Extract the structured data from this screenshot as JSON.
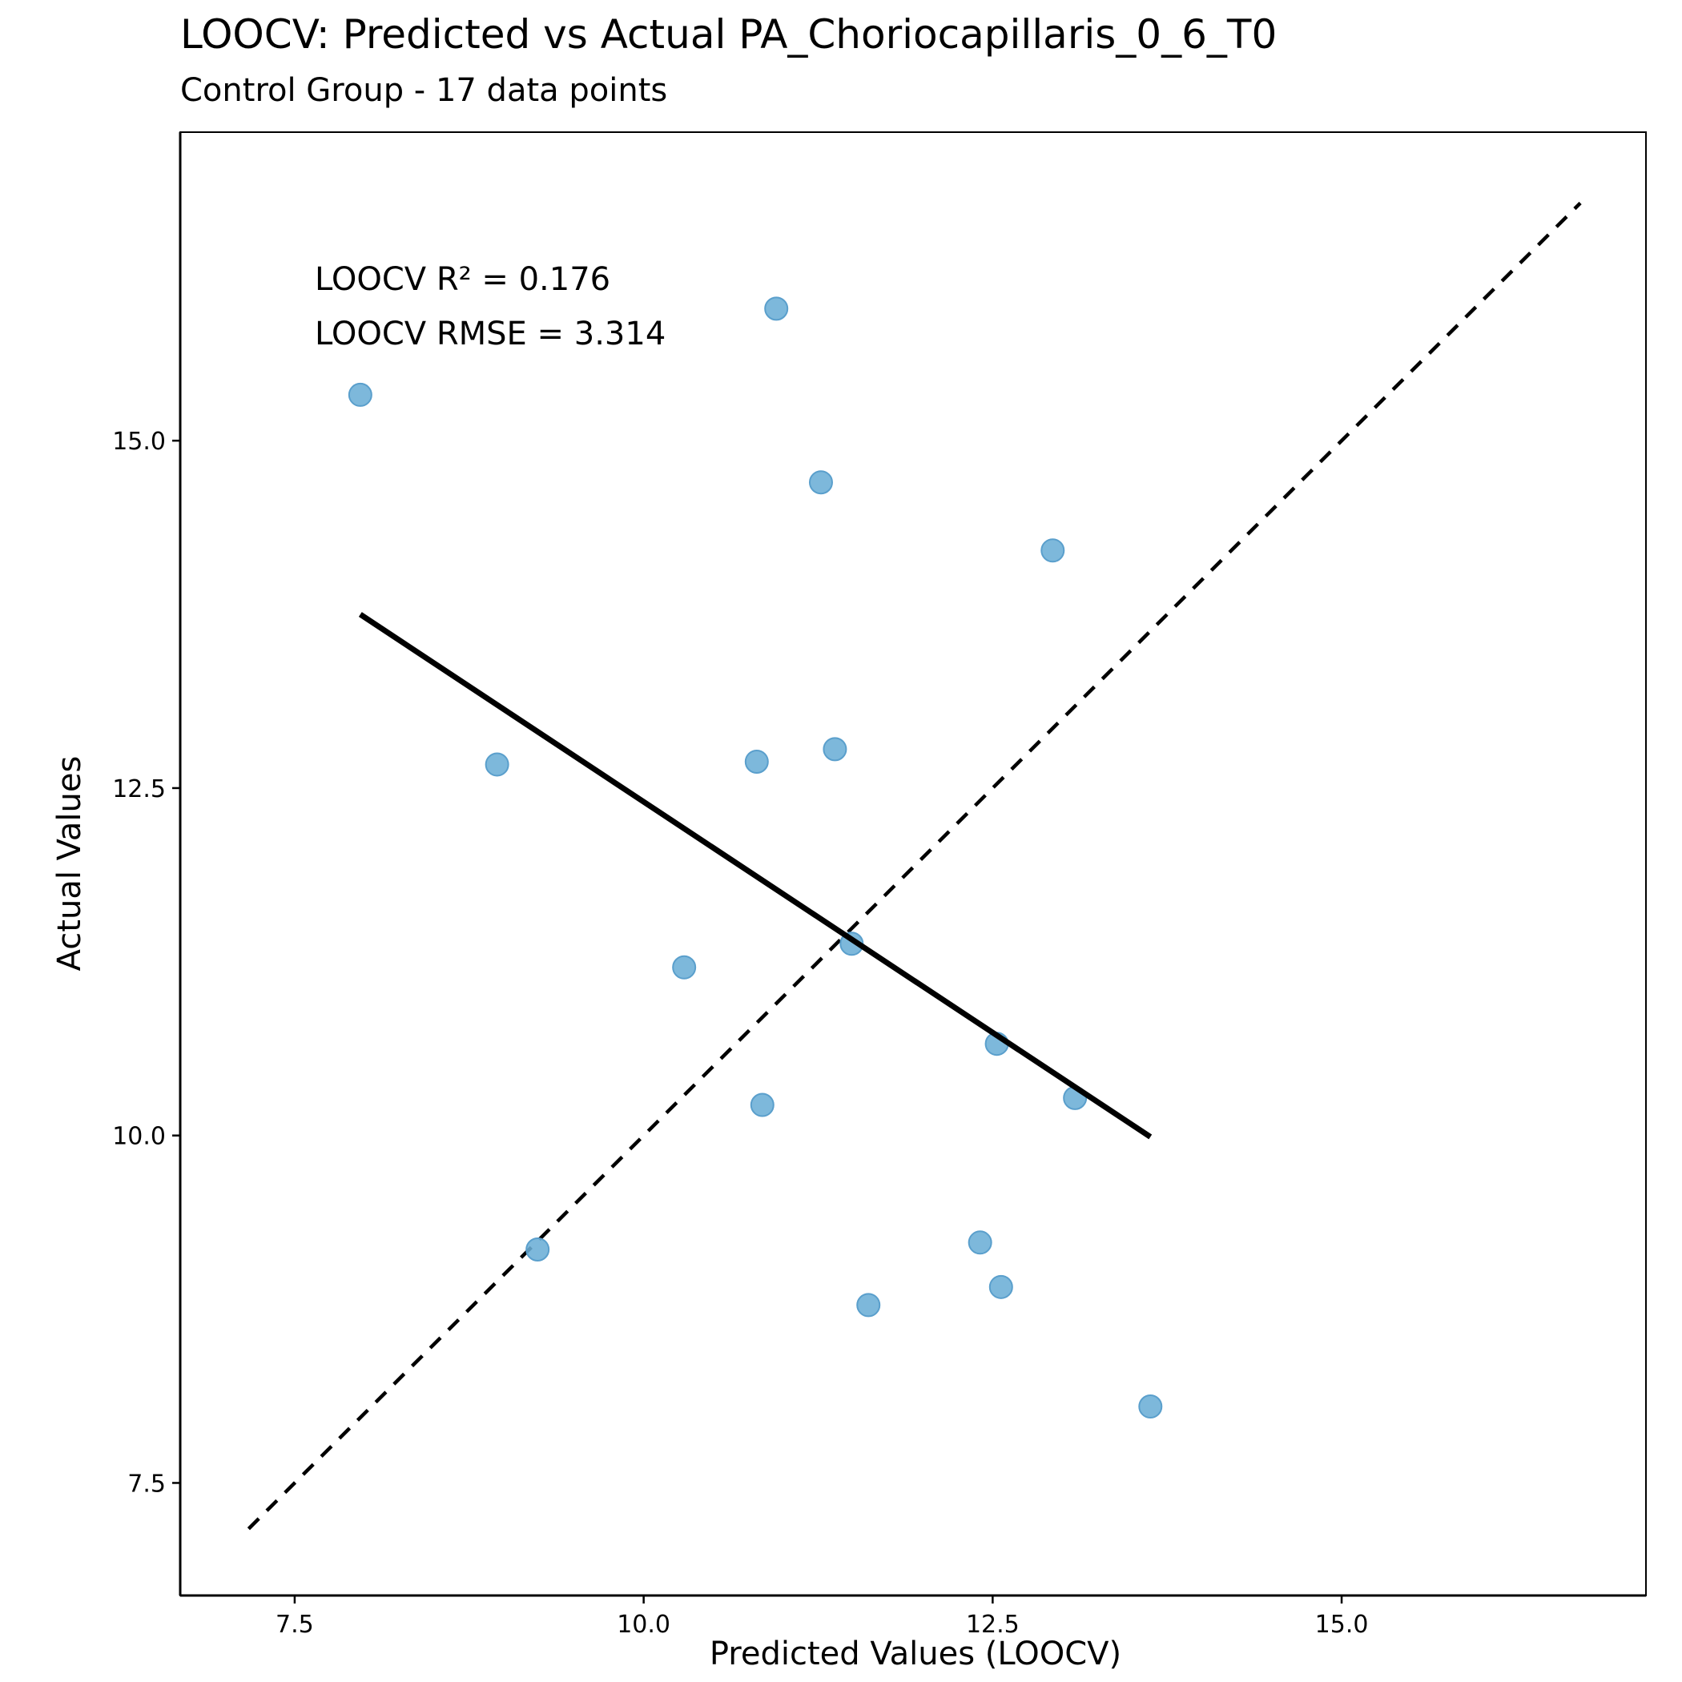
{
  "chart_data": {
    "type": "scatter",
    "title": "LOOCV: Predicted vs Actual PA_Choriocapillaris_0_6_T0",
    "subtitle": "Control Group - 17 data points",
    "xlabel": "Predicted Values (LOOCV)",
    "ylabel": "Actual Values",
    "xlim": [
      6.68,
      17.18
    ],
    "ylim": [
      6.69,
      17.22
    ],
    "xticks": [
      7.5,
      10.0,
      12.5,
      15.0
    ],
    "xtick_labels": [
      "7.5",
      "10.0",
      "12.5",
      "15.0"
    ],
    "yticks": [
      7.5,
      10.0,
      12.5,
      15.0
    ],
    "ytick_labels": [
      "7.5",
      "10.0",
      "12.5",
      "15.0"
    ],
    "grid": false,
    "points": [
      {
        "x": 7.97,
        "y": 15.33
      },
      {
        "x": 10.95,
        "y": 15.95
      },
      {
        "x": 11.27,
        "y": 14.7
      },
      {
        "x": 12.93,
        "y": 14.21
      },
      {
        "x": 8.95,
        "y": 12.67
      },
      {
        "x": 10.81,
        "y": 12.69
      },
      {
        "x": 11.37,
        "y": 12.78
      },
      {
        "x": 10.29,
        "y": 11.21
      },
      {
        "x": 11.49,
        "y": 11.38
      },
      {
        "x": 12.53,
        "y": 10.66
      },
      {
        "x": 13.09,
        "y": 10.27
      },
      {
        "x": 10.85,
        "y": 10.22
      },
      {
        "x": 9.24,
        "y": 9.18
      },
      {
        "x": 12.41,
        "y": 9.23
      },
      {
        "x": 12.56,
        "y": 8.91
      },
      {
        "x": 11.61,
        "y": 8.78
      },
      {
        "x": 13.63,
        "y": 8.05
      }
    ],
    "point_color": "#6BAED6",
    "regression_line": {
      "x": [
        7.97,
        13.63
      ],
      "y": [
        13.75,
        9.99
      ]
    },
    "identity_line": {
      "x": [
        7.17,
        16.71
      ],
      "y": [
        7.17,
        16.71
      ]
    },
    "annotations": [
      "LOOCV R² = 0.176",
      "LOOCV RMSE = 3.314"
    ]
  }
}
